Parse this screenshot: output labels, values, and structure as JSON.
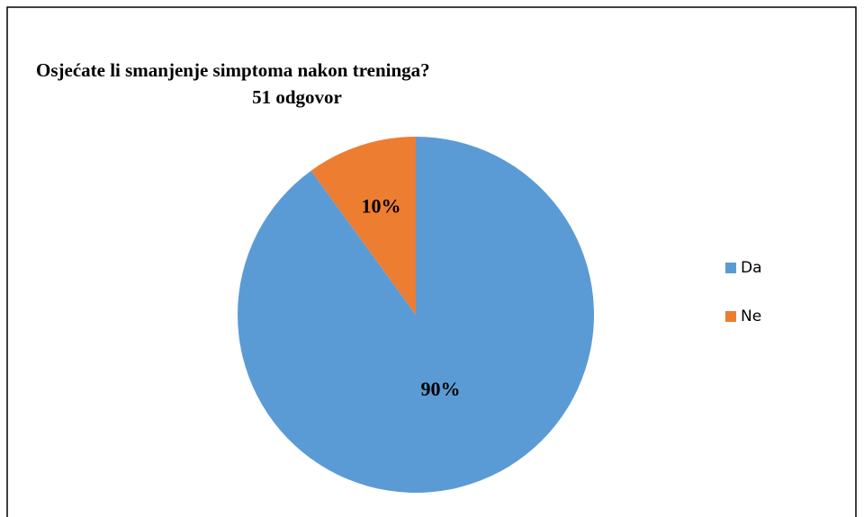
{
  "chart_data": {
    "type": "pie",
    "title": "Osjećate li smanjenje simptoma nakon treninga?",
    "subtitle": "51 odgovor",
    "categories": [
      "Da",
      "Ne"
    ],
    "values": [
      90,
      10
    ],
    "value_labels": [
      "90%",
      "10%"
    ],
    "colors": [
      "#5b9bd5",
      "#ed7d31"
    ],
    "legend": "right"
  }
}
